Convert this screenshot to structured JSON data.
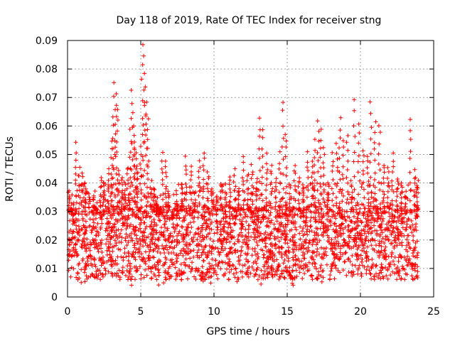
{
  "chart_data": {
    "type": "scatter",
    "title": "Day 118 of 2019, Rate Of TEC Index for receiver stng",
    "xlabel": "GPS time / hours",
    "ylabel": "ROTI / TECUs",
    "xlim": [
      0,
      25
    ],
    "ylim": [
      0,
      0.09
    ],
    "x_ticks": [
      0,
      5,
      10,
      15,
      20,
      25
    ],
    "x_tick_labels": [
      "0",
      "5",
      "10",
      "15",
      "20",
      "25"
    ],
    "y_ticks": [
      0,
      0.01,
      0.02,
      0.03,
      0.04,
      0.05,
      0.06,
      0.07,
      0.08,
      0.09
    ],
    "y_tick_labels": [
      "0",
      "0.01",
      "0.02",
      "0.03",
      "0.04",
      "0.05",
      "0.06",
      "0.07",
      "0.08",
      "0.09"
    ],
    "grid": true,
    "marker": "+",
    "color": "#ff0000",
    "series": [
      {
        "name": "ROTI",
        "x": [
          0.1,
          0.3,
          0.4,
          0.6,
          0.8,
          1.0,
          1.2,
          1.5,
          1.8,
          2.0,
          2.3,
          2.5,
          2.8,
          3.0,
          3.1,
          3.2,
          3.3,
          3.4,
          3.5,
          3.7,
          3.9,
          4.1,
          4.3,
          4.4,
          4.5,
          4.6,
          4.7,
          4.8,
          5.0,
          5.1,
          5.2,
          5.3,
          5.4,
          5.5,
          5.7,
          5.9,
          6.1,
          6.3,
          6.5,
          6.7,
          6.9,
          7.2,
          7.5,
          7.8,
          8.1,
          8.4,
          8.7,
          9.0,
          9.3,
          9.6,
          9.9,
          10.2,
          10.5,
          10.8,
          11.1,
          11.4,
          11.7,
          12.0,
          12.3,
          12.6,
          12.9,
          13.1,
          13.3,
          13.6,
          13.9,
          14.2,
          14.5,
          14.7,
          14.9,
          15.2,
          15.5,
          15.8,
          16.1,
          16.4,
          16.7,
          16.9,
          17.1,
          17.3,
          17.5,
          17.8,
          18.1,
          18.4,
          18.6,
          18.8,
          19.1,
          19.4,
          19.6,
          19.9,
          20.2,
          20.5,
          20.7,
          21.0,
          21.3,
          21.6,
          21.9,
          22.2,
          22.5,
          22.8,
          23.1,
          23.4,
          23.7,
          23.9
        ],
        "y": [
          0.038,
          0.03,
          0.026,
          0.054,
          0.045,
          0.043,
          0.04,
          0.036,
          0.035,
          0.03,
          0.042,
          0.04,
          0.044,
          0.055,
          0.063,
          0.076,
          0.072,
          0.066,
          0.044,
          0.042,
          0.04,
          0.046,
          0.058,
          0.073,
          0.064,
          0.055,
          0.05,
          0.046,
          0.052,
          0.089,
          0.085,
          0.073,
          0.069,
          0.063,
          0.04,
          0.038,
          0.034,
          0.03,
          0.05,
          0.047,
          0.037,
          0.028,
          0.033,
          0.04,
          0.049,
          0.046,
          0.037,
          0.047,
          0.051,
          0.044,
          0.038,
          0.035,
          0.04,
          0.036,
          0.042,
          0.045,
          0.038,
          0.049,
          0.043,
          0.046,
          0.041,
          0.063,
          0.059,
          0.05,
          0.046,
          0.042,
          0.05,
          0.069,
          0.058,
          0.04,
          0.046,
          0.042,
          0.038,
          0.05,
          0.048,
          0.055,
          0.061,
          0.058,
          0.052,
          0.041,
          0.05,
          0.054,
          0.063,
          0.055,
          0.057,
          0.04,
          0.069,
          0.06,
          0.052,
          0.049,
          0.068,
          0.062,
          0.061,
          0.047,
          0.045,
          0.05,
          0.041,
          0.038,
          0.036,
          0.062,
          0.044,
          0.041
        ]
      }
    ]
  }
}
